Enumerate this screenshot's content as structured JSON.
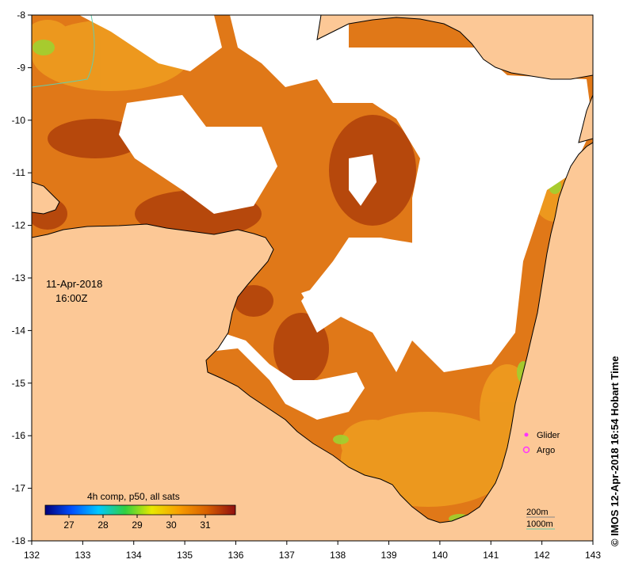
{
  "map": {
    "date": "11-Apr-2018",
    "time": "16:00Z",
    "credit": "©  IMOS 12-Apr-2018 16:54 Hobart Time",
    "x_ticks": [
      "132",
      "133",
      "134",
      "135",
      "136",
      "137",
      "138",
      "139",
      "140",
      "141",
      "142",
      "143"
    ],
    "y_ticks": [
      "-8",
      "-9",
      "-10",
      "-11",
      "-12",
      "-13",
      "-14",
      "-15",
      "-16",
      "-17",
      "-18"
    ],
    "legend": {
      "items": [
        {
          "label": "Glider",
          "color": "#ff33ff"
        },
        {
          "label": "Argo",
          "color": "#ff33ff"
        }
      ]
    },
    "isobaths": {
      "items": [
        {
          "label": "200m",
          "color": "#888888"
        },
        {
          "label": "1000m",
          "color": "#66ccaa"
        }
      ]
    },
    "colorbar": {
      "title": "4h comp, p50, all sats",
      "ticks": [
        "27",
        "28",
        "29",
        "30",
        "31"
      ],
      "stops": [
        "#00007a",
        "#0050ff",
        "#00c8ff",
        "#30d040",
        "#e8e800",
        "#f8a000",
        "#d86000",
        "#901010"
      ]
    },
    "colors": {
      "land": "#fcc896",
      "sst_base": "#e07818",
      "sst_warm": "#a83808",
      "sst_cool": "#f0a020",
      "cloud": "#ffffff"
    }
  }
}
